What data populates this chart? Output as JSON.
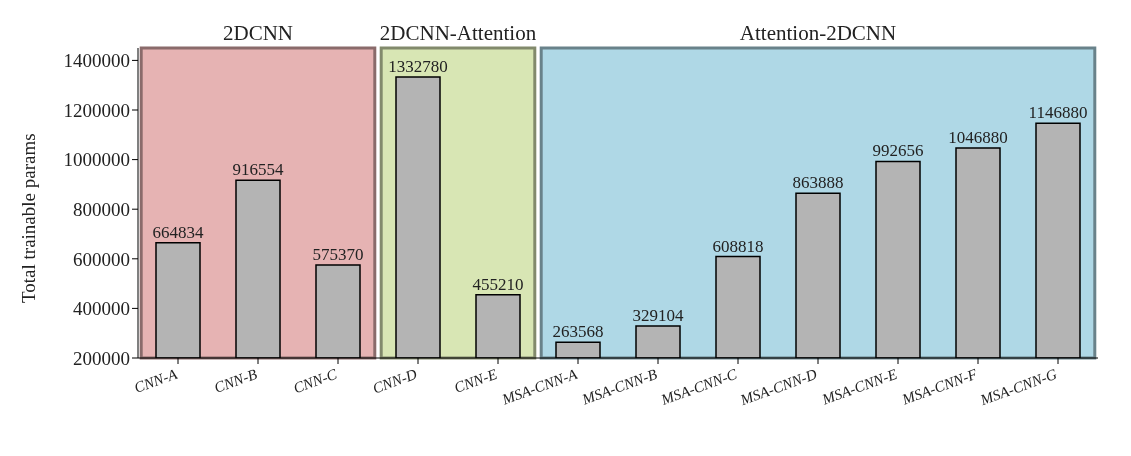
{
  "chart_data": {
    "type": "bar",
    "ylabel": "Total trainable params",
    "categories": [
      "CNN-A",
      "CNN-B",
      "CNN-C",
      "CNN-D",
      "CNN-E",
      "MSA-CNN-A",
      "MSA-CNN-B",
      "MSA-CNN-C",
      "MSA-CNN-D",
      "MSA-CNN-E",
      "MSA-CNN-F",
      "MSA-CNN-G"
    ],
    "values": [
      664834,
      916554,
      575370,
      1332780,
      455210,
      263568,
      329104,
      608818,
      863888,
      992656,
      1046880,
      1146880
    ],
    "color": "#b4b4b4",
    "data_labels": true,
    "ylim": [
      200000,
      1450000
    ],
    "yticks": [
      200000,
      400000,
      600000,
      800000,
      1000000,
      1200000,
      1400000
    ],
    "bands": [
      {
        "axis": "x",
        "from": "CNN-A",
        "to": "CNN-C",
        "label": "2DCNN",
        "color": "#e6b3b3"
      },
      {
        "axis": "x",
        "from": "CNN-D",
        "to": "CNN-E",
        "label": "2DCNN-Attention",
        "color": "#d8e6b4"
      },
      {
        "axis": "x",
        "from": "MSA-CNN-A",
        "to": "MSA-CNN-G",
        "label": "Attention-2DCNN",
        "color": "#afd8e6"
      }
    ],
    "grid": false,
    "legend": false
  }
}
